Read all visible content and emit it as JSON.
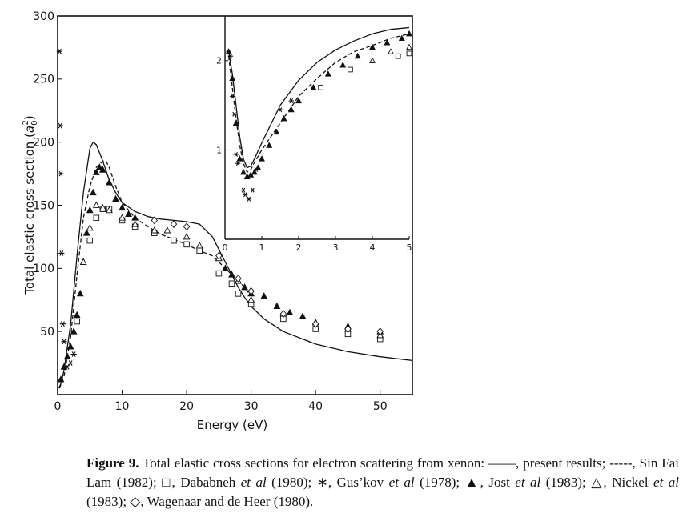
{
  "chart_data": [
    {
      "type": "scatter",
      "name": "main",
      "xlabel": "Energy (eV)",
      "ylabel": "Total elastic cross section (a₀²)",
      "ylabel_main": "Total elastic cross section",
      "ylabel_unit_a": "a",
      "ylabel_unit_sub": "0",
      "ylabel_unit_sup": "2",
      "xlim": [
        0,
        55
      ],
      "ylim": [
        0,
        300
      ],
      "xticks": [
        0,
        10,
        20,
        30,
        40,
        50
      ],
      "xticklabels": [
        "0",
        "10",
        "20",
        "30",
        "40",
        "50"
      ],
      "yticks": [
        50,
        100,
        150,
        200,
        250,
        300
      ],
      "yticklabels": [
        "50",
        "100",
        "150",
        "200",
        "250",
        "300"
      ],
      "series": [
        {
          "name": "present results",
          "style": "solid",
          "x": [
            0.2,
            0.6,
            1,
            2,
            3,
            4,
            5,
            5.5,
            6,
            7,
            8,
            9,
            10,
            12,
            14,
            16,
            18,
            20,
            22,
            24,
            26,
            27,
            28,
            29,
            30,
            32,
            35,
            40,
            45,
            50,
            55
          ],
          "y": [
            5,
            10,
            20,
            55,
            110,
            160,
            195,
            200,
            198,
            185,
            170,
            160,
            152,
            145,
            141,
            139,
            138,
            137,
            135,
            125,
            105,
            95,
            85,
            77,
            70,
            60,
            50,
            40,
            34,
            30,
            27
          ]
        },
        {
          "name": "Sin Fai Lam (1982)",
          "style": "dashed",
          "x": [
            0.3,
            1,
            2,
            3,
            4,
            5,
            6,
            7,
            7.5,
            8,
            9,
            10,
            12,
            14,
            16,
            18,
            20,
            22,
            24,
            25,
            26,
            27,
            28,
            29,
            30
          ],
          "y": [
            5,
            15,
            45,
            95,
            140,
            165,
            180,
            185,
            185,
            180,
            165,
            152,
            140,
            133,
            127,
            123,
            119,
            114,
            110,
            105,
            100,
            95,
            90,
            85,
            78
          ]
        },
        {
          "name": "Dababneh et al (1980)",
          "marker": "square",
          "x": [
            3,
            5,
            6,
            7,
            8,
            10,
            12,
            15,
            18,
            20,
            22,
            25,
            27,
            28,
            30,
            35,
            40,
            45,
            50
          ],
          "y": [
            58,
            122,
            140,
            147,
            147,
            138,
            133,
            128,
            122,
            119,
            114,
            96,
            88,
            80,
            72,
            60,
            52,
            48,
            44
          ]
        },
        {
          "name": "Gus'kov et al (1978)",
          "marker": "asterisk",
          "x": [
            0.3,
            0.4,
            0.5,
            0.6,
            0.8,
            1,
            1.5,
            2,
            2.5
          ],
          "y": [
            272,
            213,
            175,
            112,
            56,
            42,
            22,
            25,
            32
          ]
        },
        {
          "name": "Jost et al (1983)",
          "marker": "filled-triangle",
          "x": [
            0.5,
            1,
            1.5,
            2,
            2.5,
            3,
            3.5,
            4,
            4.5,
            5,
            5.5,
            6,
            6.5,
            7,
            8,
            9,
            10,
            11,
            12,
            25,
            26,
            27,
            28,
            29,
            30,
            32,
            34,
            36,
            38,
            40,
            45,
            50
          ],
          "y": [
            12,
            22,
            30,
            38,
            50,
            63,
            80,
            105,
            128,
            146,
            160,
            176,
            180,
            178,
            168,
            155,
            148,
            143,
            140,
            108,
            100,
            95,
            90,
            85,
            80,
            78,
            70,
            65,
            62,
            57,
            54,
            50
          ]
        },
        {
          "name": "Nickel et al (1983)",
          "marker": "triangle",
          "x": [
            4,
            5,
            6,
            7,
            8,
            10,
            12,
            15,
            17,
            20,
            22,
            25,
            28,
            30,
            35,
            40,
            45,
            50
          ],
          "y": [
            105,
            132,
            150,
            148,
            146,
            140,
            135,
            130,
            130,
            125,
            118,
            108,
            90,
            75,
            64,
            57,
            52,
            47
          ]
        },
        {
          "name": "Wagenaar and de Heer (1980)",
          "marker": "diamond",
          "x": [
            15,
            18,
            20,
            25,
            28,
            30,
            35,
            40,
            45,
            50
          ],
          "y": [
            138,
            135,
            133,
            110,
            92,
            82,
            64,
            56,
            52,
            50
          ]
        }
      ]
    },
    {
      "type": "scatter",
      "name": "inset",
      "xlim": [
        0,
        5
      ],
      "ylim": [
        0,
        2.5
      ],
      "xticks": [
        0,
        1,
        2,
        3,
        4,
        5
      ],
      "xticklabels": [
        "0",
        "1",
        "2",
        "3",
        "4",
        "5"
      ],
      "yticks": [
        1,
        2
      ],
      "yticklabels": [
        "1",
        "2"
      ],
      "series": [
        {
          "name": "present results",
          "style": "solid",
          "x": [
            0.1,
            0.2,
            0.3,
            0.4,
            0.5,
            0.6,
            0.7,
            0.8,
            1,
            1.5,
            2,
            2.5,
            3,
            3.5,
            4,
            4.5,
            5
          ],
          "y": [
            2.1,
            1.85,
            1.5,
            1.15,
            0.9,
            0.8,
            0.82,
            0.9,
            1.08,
            1.5,
            1.78,
            1.98,
            2.12,
            2.22,
            2.3,
            2.35,
            2.37
          ]
        },
        {
          "name": "Sin Fai Lam (1982)",
          "style": "dashed",
          "x": [
            0.1,
            0.2,
            0.3,
            0.4,
            0.5,
            0.6,
            0.7,
            0.8,
            1,
            1.5,
            2,
            2.5,
            3,
            3.5,
            4,
            4.5,
            5
          ],
          "y": [
            2.05,
            1.7,
            1.35,
            1.05,
            0.85,
            0.75,
            0.78,
            0.86,
            1.0,
            1.3,
            1.6,
            1.8,
            1.98,
            2.1,
            2.17,
            2.25,
            2.3
          ]
        },
        {
          "name": "Dababneh et al (1980)",
          "marker": "square",
          "x": [
            2.6,
            3.4,
            4.7,
            5
          ],
          "y": [
            1.7,
            1.9,
            2.05,
            2.08
          ]
        },
        {
          "name": "Gus'kov et al (1978)",
          "marker": "asterisk",
          "x": [
            0.1,
            0.15,
            0.2,
            0.25,
            0.3,
            0.35,
            0.5,
            0.55,
            0.65,
            0.75,
            0.85,
            1.5,
            1.8
          ],
          "y": [
            2.1,
            2.05,
            1.6,
            1.4,
            0.95,
            0.85,
            0.55,
            0.5,
            0.45,
            0.55,
            0.78,
            1.45,
            1.55
          ]
        },
        {
          "name": "Jost et al (1983)",
          "marker": "filled-triangle",
          "x": [
            0.1,
            0.2,
            0.3,
            0.4,
            0.5,
            0.6,
            0.7,
            0.8,
            0.9,
            1,
            1.2,
            1.4,
            1.6,
            1.8,
            2,
            2.4,
            2.8,
            3.2,
            3.6,
            4,
            4.4,
            4.8,
            5
          ],
          "y": [
            2.1,
            1.8,
            1.3,
            0.9,
            0.75,
            0.7,
            0.72,
            0.75,
            0.8,
            0.9,
            1.05,
            1.2,
            1.35,
            1.45,
            1.55,
            1.7,
            1.85,
            1.95,
            2.05,
            2.15,
            2.2,
            2.25,
            2.3
          ]
        },
        {
          "name": "Nickel et al (1983)",
          "marker": "triangle",
          "x": [
            4,
            4.5,
            5
          ],
          "y": [
            2.0,
            2.1,
            2.15
          ]
        }
      ]
    }
  ],
  "caption": {
    "label": "Figure 9.",
    "text_1": " Total elastic cross sections for electron scattering from xenon: ——, present results; -----, Sin Fai Lam (1982); □, Dababneh ",
    "et_al_1": "et al",
    "text_2": " (1980); ∗, Gus’kov ",
    "et_al_2": "et al",
    "text_3": " (1978); ▲, Jost ",
    "et_al_3": "et al",
    "text_4": " (1983); △, Nickel ",
    "et_al_4": "et al",
    "text_5": " (1983); ◇, Wagenaar and de Heer (1980)."
  }
}
